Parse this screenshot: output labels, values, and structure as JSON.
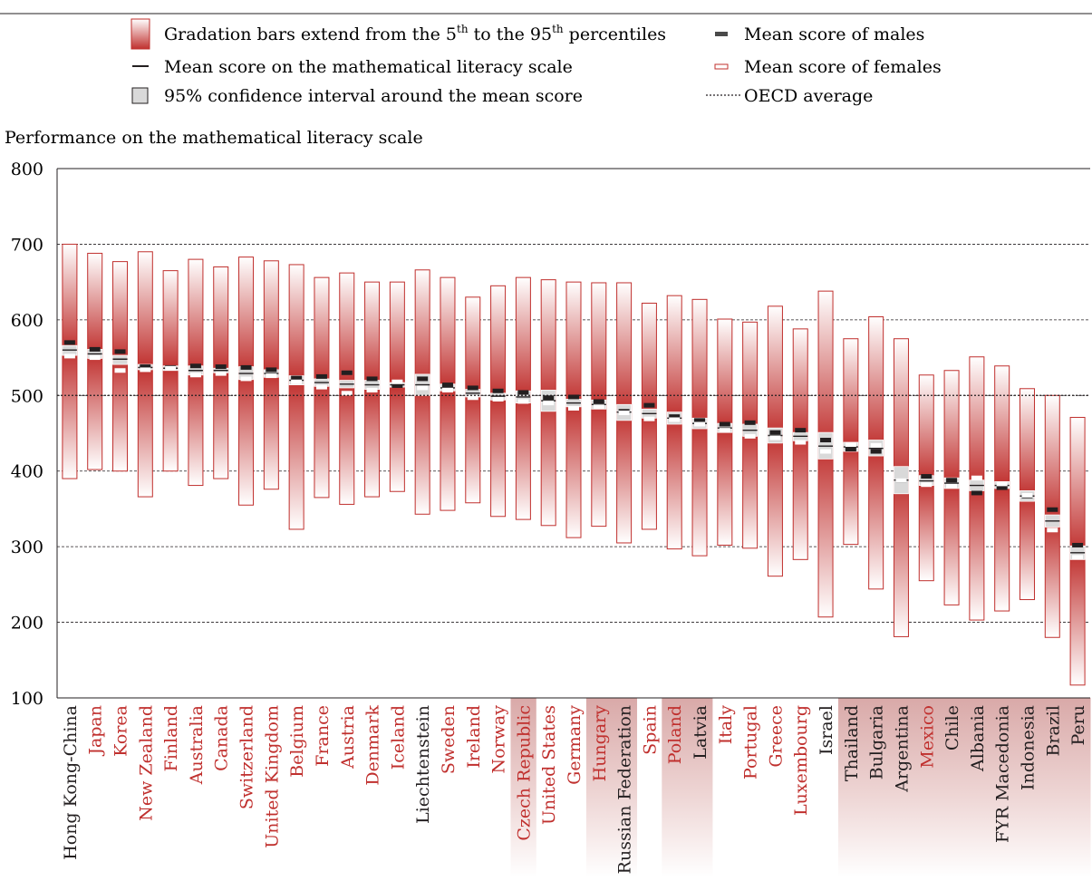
{
  "legend": {
    "gradation": "Gradation bars extend from the 5",
    "gradation_sup1": "th",
    "gradation_mid": " to the 95",
    "gradation_sup2": "th",
    "gradation_end": " percentiles",
    "mean_line": "Mean score on the mathematical literacy scale",
    "ci_box": "95% confidence interval around the mean score",
    "males": "Mean score of males",
    "females": "Mean score of females",
    "oecd": "OECD average"
  },
  "colors": {
    "bar_red": "#c0302e",
    "oecd_country_label": "#c0302e",
    "partner_country_label": "#231f20",
    "ci_fill": "#d9d9d9",
    "male_mark": "#231f20",
    "female_mark": "#ffffff"
  },
  "chart_data": {
    "type": "range-bar",
    "title": "Performance on the mathematical literacy scale",
    "ylim": [
      100,
      800
    ],
    "yticks": [
      100,
      200,
      300,
      400,
      500,
      600,
      700,
      800
    ],
    "grid_lines": [
      200,
      300,
      400,
      500,
      600,
      700
    ],
    "oecd_average": 500,
    "countries": [
      {
        "name": "Hong Kong-China",
        "oecd": false,
        "shade": false,
        "p5": 390,
        "p95": 700,
        "mean": 560,
        "ci": [
          553,
          566
        ],
        "male": 570,
        "female": 552
      },
      {
        "name": "Japan",
        "oecd": true,
        "shade": false,
        "p5": 402,
        "p95": 688,
        "mean": 555,
        "ci": [
          549,
          561
        ],
        "male": 561,
        "female": 550
      },
      {
        "name": "Korea",
        "oecd": true,
        "shade": false,
        "p5": 400,
        "p95": 677,
        "mean": 548,
        "ci": [
          541,
          553
        ],
        "male": 558,
        "female": 533
      },
      {
        "name": "New Zealand",
        "oecd": true,
        "shade": false,
        "p5": 366,
        "p95": 690,
        "mean": 537,
        "ci": [
          534,
          541
        ],
        "male": 538,
        "female": 534
      },
      {
        "name": "Finland",
        "oecd": true,
        "shade": false,
        "p5": 400,
        "p95": 665,
        "mean": 536,
        "ci": [
          533,
          539
        ],
        "male": 537,
        "female": 536
      },
      {
        "name": "Australia",
        "oecd": true,
        "shade": false,
        "p5": 381,
        "p95": 680,
        "mean": 533,
        "ci": [
          527,
          539
        ],
        "male": 539,
        "female": 527
      },
      {
        "name": "Canada",
        "oecd": true,
        "shade": false,
        "p5": 390,
        "p95": 670,
        "mean": 533,
        "ci": [
          530,
          536
        ],
        "male": 538,
        "female": 529
      },
      {
        "name": "Switzerland",
        "oecd": true,
        "shade": false,
        "p5": 355,
        "p95": 683,
        "mean": 529,
        "ci": [
          521,
          538
        ],
        "male": 537,
        "female": 522
      },
      {
        "name": "United Kingdom",
        "oecd": true,
        "shade": false,
        "p5": 376,
        "p95": 678,
        "mean": 529,
        "ci": [
          524,
          534
        ],
        "male": 534,
        "female": 526
      },
      {
        "name": "Belgium",
        "oecd": true,
        "shade": false,
        "p5": 323,
        "p95": 673,
        "mean": 520,
        "ci": [
          514,
          526
        ],
        "male": 523,
        "female": 518
      },
      {
        "name": "France",
        "oecd": true,
        "shade": false,
        "p5": 365,
        "p95": 656,
        "mean": 517,
        "ci": [
          512,
          522
        ],
        "male": 525,
        "female": 511
      },
      {
        "name": "Austria",
        "oecd": true,
        "shade": false,
        "p5": 356,
        "p95": 662,
        "mean": 515,
        "ci": [
          510,
          520
        ],
        "male": 530,
        "female": 503
      },
      {
        "name": "Denmark",
        "oecd": true,
        "shade": false,
        "p5": 366,
        "p95": 650,
        "mean": 514,
        "ci": [
          508,
          520
        ],
        "male": 522,
        "female": 507
      },
      {
        "name": "Iceland",
        "oecd": true,
        "shade": false,
        "p5": 373,
        "p95": 650,
        "mean": 514,
        "ci": [
          511,
          517
        ],
        "male": 513,
        "female": 518
      },
      {
        "name": "Liechtenstein",
        "oecd": false,
        "shade": false,
        "p5": 343,
        "p95": 666,
        "mean": 514,
        "ci": [
          500,
          528
        ],
        "male": 522,
        "female": 510
      },
      {
        "name": "Sweden",
        "oecd": true,
        "shade": false,
        "p5": 348,
        "p95": 656,
        "mean": 510,
        "ci": [
          506,
          515
        ],
        "male": 514,
        "female": 507
      },
      {
        "name": "Ireland",
        "oecd": true,
        "shade": false,
        "p5": 358,
        "p95": 630,
        "mean": 503,
        "ci": [
          498,
          508
        ],
        "male": 510,
        "female": 497
      },
      {
        "name": "Norway",
        "oecd": true,
        "shade": false,
        "p5": 340,
        "p95": 645,
        "mean": 499,
        "ci": [
          494,
          503
        ],
        "male": 506,
        "female": 495
      },
      {
        "name": "Czech Republic",
        "oecd": true,
        "shade": true,
        "p5": 336,
        "p95": 656,
        "mean": 498,
        "ci": [
          490,
          506
        ],
        "male": 504,
        "female": 492
      },
      {
        "name": "United States",
        "oecd": true,
        "shade": false,
        "p5": 328,
        "p95": 653,
        "mean": 493,
        "ci": [
          479,
          507
        ],
        "male": 497,
        "female": 490
      },
      {
        "name": "Germany",
        "oecd": true,
        "shade": false,
        "p5": 312,
        "p95": 650,
        "mean": 490,
        "ci": [
          485,
          495
        ],
        "male": 498,
        "female": 483
      },
      {
        "name": "Hungary",
        "oecd": true,
        "shade": true,
        "p5": 327,
        "p95": 649,
        "mean": 488,
        "ci": [
          482,
          494
        ],
        "male": 492,
        "female": 485
      },
      {
        "name": "Russian Federation",
        "oecd": false,
        "shade": true,
        "p5": 305,
        "p95": 649,
        "mean": 478,
        "ci": [
          467,
          488
        ],
        "male": 479,
        "female": 477
      },
      {
        "name": "Spain",
        "oecd": true,
        "shade": false,
        "p5": 323,
        "p95": 622,
        "mean": 476,
        "ci": [
          470,
          482
        ],
        "male": 487,
        "female": 469
      },
      {
        "name": "Poland",
        "oecd": true,
        "shade": true,
        "p5": 297,
        "p95": 632,
        "mean": 470,
        "ci": [
          462,
          478
        ],
        "male": 472,
        "female": 468
      },
      {
        "name": "Latvia",
        "oecd": false,
        "shade": true,
        "p5": 288,
        "p95": 627,
        "mean": 463,
        "ci": [
          456,
          470
        ],
        "male": 467,
        "female": 462
      },
      {
        "name": "Italy",
        "oecd": true,
        "shade": false,
        "p5": 302,
        "p95": 601,
        "mean": 457,
        "ci": [
          451,
          463
        ],
        "male": 462,
        "female": 454
      },
      {
        "name": "Portugal",
        "oecd": true,
        "shade": false,
        "p5": 298,
        "p95": 597,
        "mean": 454,
        "ci": [
          446,
          462
        ],
        "male": 464,
        "female": 446
      },
      {
        "name": "Greece",
        "oecd": true,
        "shade": false,
        "p5": 261,
        "p95": 618,
        "mean": 447,
        "ci": [
          437,
          457
        ],
        "male": 451,
        "female": 444
      },
      {
        "name": "Luxembourg",
        "oecd": true,
        "shade": false,
        "p5": 283,
        "p95": 588,
        "mean": 446,
        "ci": [
          440,
          451
        ],
        "male": 454,
        "female": 438
      },
      {
        "name": "Israel",
        "oecd": false,
        "shade": false,
        "p5": 207,
        "p95": 638,
        "mean": 433,
        "ci": [
          416,
          451
        ],
        "male": 441,
        "female": 426
      },
      {
        "name": "Thailand",
        "oecd": false,
        "shade": true,
        "p5": 303,
        "p95": 575,
        "mean": 432,
        "ci": [
          426,
          438
        ],
        "male": 429,
        "female": 435
      },
      {
        "name": "Bulgaria",
        "oecd": false,
        "shade": true,
        "p5": 244,
        "p95": 604,
        "mean": 430,
        "ci": [
          420,
          441
        ],
        "male": 426,
        "female": 434
      },
      {
        "name": "Argentina",
        "oecd": false,
        "shade": true,
        "p5": 181,
        "p95": 575,
        "mean": 388,
        "ci": [
          370,
          406
        ],
        "male": 388,
        "female": 388
      },
      {
        "name": "Mexico",
        "oecd": true,
        "shade": true,
        "p5": 255,
        "p95": 527,
        "mean": 387,
        "ci": [
          381,
          394
        ],
        "male": 393,
        "female": 382
      },
      {
        "name": "Chile",
        "oecd": false,
        "shade": true,
        "p5": 223,
        "p95": 533,
        "mean": 384,
        "ci": [
          377,
          391
        ],
        "male": 388,
        "female": 380
      },
      {
        "name": "Albania",
        "oecd": false,
        "shade": true,
        "p5": 203,
        "p95": 551,
        "mean": 381,
        "ci": [
          374,
          388
        ],
        "male": 371,
        "female": 391
      },
      {
        "name": "FYR Macedonia",
        "oecd": false,
        "shade": true,
        "p5": 215,
        "p95": 539,
        "mean": 381,
        "ci": [
          377,
          386
        ],
        "male": 378,
        "female": 383
      },
      {
        "name": "Indonesia",
        "oecd": false,
        "shade": true,
        "p5": 230,
        "p95": 509,
        "mean": 367,
        "ci": [
          360,
          374
        ],
        "male": 367,
        "female": 368
      },
      {
        "name": "Brazil",
        "oecd": false,
        "shade": true,
        "p5": 180,
        "p95": 500,
        "mean": 334,
        "ci": [
          326,
          342
        ],
        "male": 349,
        "female": 322
      },
      {
        "name": "Peru",
        "oecd": false,
        "shade": true,
        "p5": 117,
        "p95": 471,
        "mean": 292,
        "ci": [
          283,
          301
        ],
        "male": 302,
        "female": 286
      }
    ]
  }
}
